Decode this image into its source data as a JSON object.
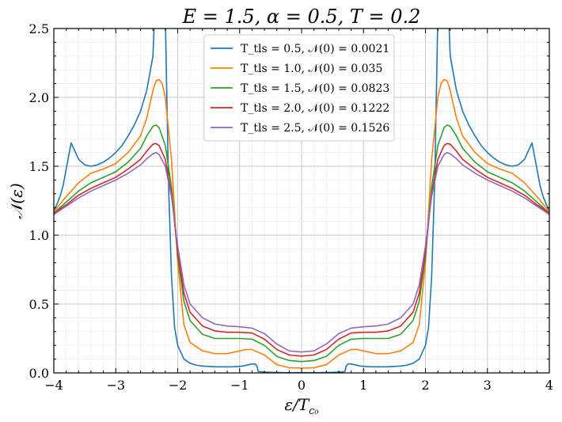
{
  "chart_data": {
    "type": "line",
    "title": "E = 1.5, α = 0.5, T = 0.2",
    "xlabel": "ε/T",
    "xlabel_sub": "c₀",
    "ylabel": "𝒩(ε)",
    "xlim": [
      -4,
      4
    ],
    "ylim": [
      0,
      2.5
    ],
    "xticks": [
      "−4",
      "−3",
      "−2",
      "−1",
      "0",
      "1",
      "2",
      "3",
      "4"
    ],
    "yticks": [
      "0.0",
      "0.5",
      "1.0",
      "1.5",
      "2.0",
      "2.5"
    ],
    "grid": true,
    "legend_position": "top-center",
    "series": [
      {
        "name": "T_tls = 0.5, 𝒩(0) = 0.0021",
        "color": "#1f77b4",
        "x": [
          0,
          0.1,
          0.2,
          0.3,
          0.4,
          0.5,
          0.6,
          0.7,
          0.72,
          0.75,
          0.8,
          0.85,
          0.9,
          0.95,
          1.0,
          1.1,
          1.2,
          1.3,
          1.4,
          1.5,
          1.6,
          1.7,
          1.8,
          1.9,
          2.0,
          2.05,
          2.1,
          2.15,
          2.2,
          2.25,
          2.3,
          2.4,
          2.5,
          2.6,
          2.7,
          2.8,
          2.9,
          3.0,
          3.1,
          3.2,
          3.3,
          3.4,
          3.5,
          3.6,
          3.65,
          3.7,
          3.72,
          3.75,
          3.8,
          3.85,
          3.9,
          4.0
        ],
        "y": [
          0.002,
          0.002,
          0.002,
          0.002,
          0.003,
          0.004,
          0.006,
          0.01,
          0.05,
          0.065,
          0.065,
          0.06,
          0.055,
          0.05,
          0.048,
          0.045,
          0.044,
          0.044,
          0.045,
          0.047,
          0.05,
          0.056,
          0.07,
          0.1,
          0.2,
          0.33,
          0.7,
          1.4,
          2.6,
          3.2,
          3.4,
          2.3,
          2.05,
          1.9,
          1.8,
          1.72,
          1.65,
          1.6,
          1.56,
          1.53,
          1.51,
          1.5,
          1.51,
          1.55,
          1.6,
          1.65,
          1.67,
          1.6,
          1.48,
          1.36,
          1.28,
          1.17
        ]
      },
      {
        "name": "T_tls = 1.0, 𝒩(0) = 0.035",
        "color": "#ff7f0e",
        "x": [
          0,
          0.2,
          0.4,
          0.6,
          0.8,
          0.9,
          1.0,
          1.2,
          1.4,
          1.6,
          1.8,
          1.9,
          2.0,
          2.1,
          2.2,
          2.25,
          2.3,
          2.35,
          2.4,
          2.5,
          2.6,
          2.8,
          3.0,
          3.2,
          3.4,
          3.6,
          3.8,
          4.0
        ],
        "y": [
          0.035,
          0.038,
          0.06,
          0.13,
          0.17,
          0.17,
          0.16,
          0.14,
          0.14,
          0.16,
          0.22,
          0.35,
          0.8,
          1.55,
          2.0,
          2.1,
          2.13,
          2.12,
          2.05,
          1.85,
          1.72,
          1.6,
          1.52,
          1.48,
          1.45,
          1.38,
          1.28,
          1.17
        ]
      },
      {
        "name": "T_tls = 1.5, 𝒩(0) = 0.0823",
        "color": "#2ca02c",
        "x": [
          0,
          0.2,
          0.4,
          0.6,
          0.8,
          1.0,
          1.2,
          1.4,
          1.6,
          1.8,
          1.9,
          2.0,
          2.1,
          2.2,
          2.3,
          2.35,
          2.4,
          2.5,
          2.6,
          2.8,
          3.0,
          3.2,
          3.4,
          3.6,
          3.8,
          4.0
        ],
        "y": [
          0.082,
          0.09,
          0.12,
          0.2,
          0.245,
          0.25,
          0.25,
          0.25,
          0.28,
          0.38,
          0.52,
          0.85,
          1.35,
          1.65,
          1.78,
          1.8,
          1.79,
          1.72,
          1.63,
          1.53,
          1.46,
          1.42,
          1.38,
          1.32,
          1.24,
          1.16
        ]
      },
      {
        "name": "T_tls = 2.0, 𝒩(0) = 0.1222",
        "color": "#d62728",
        "x": [
          0,
          0.2,
          0.4,
          0.6,
          0.8,
          1.0,
          1.2,
          1.4,
          1.6,
          1.8,
          1.9,
          2.0,
          2.1,
          2.2,
          2.3,
          2.35,
          2.4,
          2.5,
          2.6,
          2.8,
          3.0,
          3.2,
          3.4,
          3.6,
          3.8,
          4.0
        ],
        "y": [
          0.122,
          0.13,
          0.17,
          0.245,
          0.29,
          0.295,
          0.295,
          0.305,
          0.34,
          0.44,
          0.58,
          0.88,
          1.3,
          1.55,
          1.65,
          1.665,
          1.66,
          1.61,
          1.55,
          1.48,
          1.42,
          1.38,
          1.34,
          1.29,
          1.22,
          1.16
        ]
      },
      {
        "name": "T_tls = 2.5, 𝒩(0) = 0.1526",
        "color": "#9467bd",
        "x": [
          0,
          0.2,
          0.4,
          0.6,
          0.8,
          1.0,
          1.2,
          1.4,
          1.6,
          1.8,
          1.9,
          2.0,
          2.1,
          2.2,
          2.3,
          2.35,
          2.4,
          2.5,
          2.6,
          2.8,
          3.0,
          3.2,
          3.4,
          3.6,
          3.8,
          4.0
        ],
        "y": [
          0.152,
          0.16,
          0.21,
          0.285,
          0.325,
          0.335,
          0.34,
          0.355,
          0.4,
          0.5,
          0.64,
          0.92,
          1.28,
          1.5,
          1.585,
          1.6,
          1.59,
          1.555,
          1.51,
          1.45,
          1.4,
          1.36,
          1.32,
          1.27,
          1.21,
          1.15
        ]
      }
    ]
  }
}
